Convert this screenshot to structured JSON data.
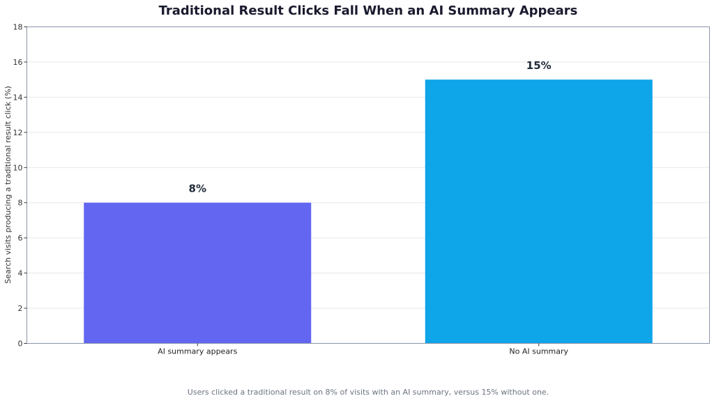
{
  "chart_data": {
    "type": "bar",
    "title": "Traditional Result Clicks Fall When an AI Summary Appears",
    "ylabel": "Search visits producing a traditional result click (%)",
    "xlabel": "",
    "categories": [
      "AI summary appears",
      "No AI summary"
    ],
    "values": [
      8,
      15
    ],
    "data_labels": [
      "8%",
      "15%"
    ],
    "colors": [
      "#6366f1",
      "#0ea5e9"
    ],
    "ylim": [
      0,
      18
    ],
    "yticks": [
      0,
      2,
      4,
      6,
      8,
      10,
      12,
      14,
      16,
      18
    ],
    "grid": true,
    "footnote": "Users clicked a traditional result on 8% of visits with an AI summary, versus 15% without one."
  }
}
